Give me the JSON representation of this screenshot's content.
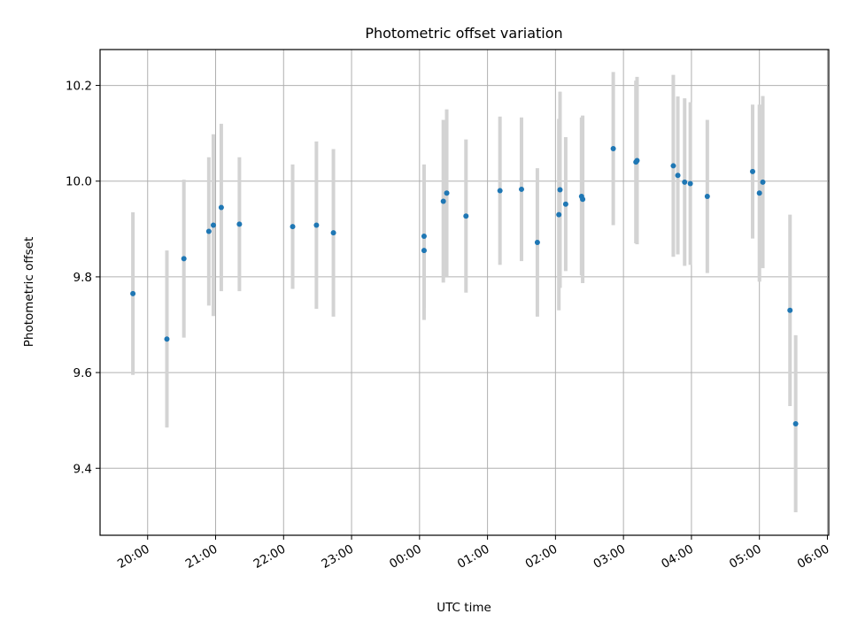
{
  "chart_data": {
    "type": "scatter",
    "title": "Photometric offset variation",
    "xlabel": "UTC time",
    "ylabel": "Photometric offset",
    "x_tick_labels": [
      "20:00",
      "21:00",
      "22:00",
      "23:00",
      "00:00",
      "01:00",
      "02:00",
      "03:00",
      "04:00",
      "05:00",
      "06:00"
    ],
    "y_tick_labels": [
      "9.4",
      "9.6",
      "9.8",
      "10.0",
      "10.2"
    ],
    "x_tick_hours": [
      20,
      21,
      22,
      23,
      24,
      25,
      26,
      27,
      28,
      29,
      30
    ],
    "y_ticks": [
      9.4,
      9.6,
      9.8,
      10.0,
      10.2
    ],
    "xlim_hours": [
      19.3,
      30.02
    ],
    "ylim": [
      9.26,
      10.275
    ],
    "grid": true,
    "colors": {
      "point": "#1f77b4",
      "errorbar": "#d3d3d3",
      "grid": "#b0b0b0"
    },
    "points": [
      {
        "t": "19:47",
        "y": 9.765,
        "err": 0.17
      },
      {
        "t": "20:17",
        "y": 9.67,
        "err": 0.185
      },
      {
        "t": "20:32",
        "y": 9.838,
        "err": 0.165
      },
      {
        "t": "20:54",
        "y": 9.895,
        "err": 0.155
      },
      {
        "t": "20:58",
        "y": 9.908,
        "err": 0.19
      },
      {
        "t": "21:05",
        "y": 9.945,
        "err": 0.175
      },
      {
        "t": "21:21",
        "y": 9.91,
        "err": 0.14
      },
      {
        "t": "22:08",
        "y": 9.905,
        "err": 0.13
      },
      {
        "t": "22:29",
        "y": 9.908,
        "err": 0.175
      },
      {
        "t": "22:44",
        "y": 9.892,
        "err": 0.175
      },
      {
        "t": "00:04",
        "y": 9.885,
        "err": 0.15
      },
      {
        "t": "00:04",
        "y": 9.855,
        "err": 0.145
      },
      {
        "t": "00:21",
        "y": 9.958,
        "err": 0.17
      },
      {
        "t": "00:24",
        "y": 9.975,
        "err": 0.175
      },
      {
        "t": "00:41",
        "y": 9.927,
        "err": 0.16
      },
      {
        "t": "01:11",
        "y": 9.98,
        "err": 0.155
      },
      {
        "t": "01:30",
        "y": 9.983,
        "err": 0.15
      },
      {
        "t": "01:44",
        "y": 9.872,
        "err": 0.155
      },
      {
        "t": "02:03",
        "y": 9.93,
        "err": 0.2
      },
      {
        "t": "02:04",
        "y": 9.982,
        "err": 0.205
      },
      {
        "t": "02:09",
        "y": 9.952,
        "err": 0.14
      },
      {
        "t": "02:23",
        "y": 9.968,
        "err": 0.165
      },
      {
        "t": "02:24",
        "y": 9.962,
        "err": 0.175
      },
      {
        "t": "02:51",
        "y": 10.068,
        "err": 0.16
      },
      {
        "t": "03:11",
        "y": 10.04,
        "err": 0.17
      },
      {
        "t": "03:12",
        "y": 10.043,
        "err": 0.175
      },
      {
        "t": "03:44",
        "y": 10.032,
        "err": 0.19
      },
      {
        "t": "03:48",
        "y": 10.012,
        "err": 0.165
      },
      {
        "t": "03:54",
        "y": 9.998,
        "err": 0.175
      },
      {
        "t": "03:59",
        "y": 9.995,
        "err": 0.17
      },
      {
        "t": "04:14",
        "y": 9.968,
        "err": 0.16
      },
      {
        "t": "04:54",
        "y": 10.02,
        "err": 0.14
      },
      {
        "t": "05:00",
        "y": 9.975,
        "err": 0.185
      },
      {
        "t": "05:03",
        "y": 9.998,
        "err": 0.18
      },
      {
        "t": "05:27",
        "y": 9.73,
        "err": 0.2
      },
      {
        "t": "05:32",
        "y": 9.493,
        "err": 0.185
      }
    ]
  }
}
